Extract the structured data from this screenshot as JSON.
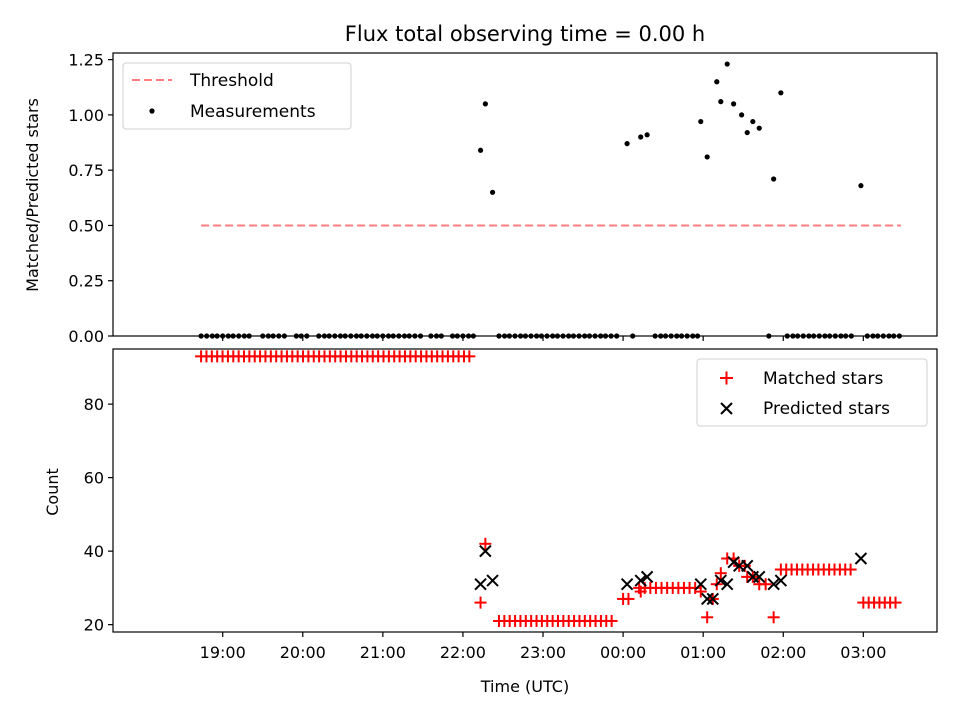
{
  "chart_data": [
    {
      "type": "scatter",
      "title": "Flux total observing time = 0.00 h",
      "xlabel": "",
      "ylabel": "Matched/Predicted stars",
      "ylim": [
        0,
        1.28
      ],
      "yticks": [
        0.0,
        0.25,
        0.5,
        0.75,
        1.0,
        1.25
      ],
      "ytick_labels": [
        "0.00",
        "0.25",
        "0.50",
        "0.75",
        "1.00",
        "1.25"
      ],
      "x_unit": "hours since 18:00 UTC",
      "legend_position": "top-left",
      "legend": [
        {
          "label": "Threshold",
          "style": "dashed-line",
          "color": "#ff7f7f"
        },
        {
          "label": "Measurements",
          "style": "dot",
          "color": "#000000"
        }
      ],
      "threshold": {
        "value": 0.5,
        "x_start": 0.73,
        "x_end": 9.47
      },
      "series": [
        {
          "name": "Measurements",
          "color": "#000000",
          "points": [
            [
              0.73,
              0
            ],
            [
              0.8,
              0
            ],
            [
              0.87,
              0
            ],
            [
              0.93,
              0
            ],
            [
              1.0,
              0
            ],
            [
              1.07,
              0
            ],
            [
              1.13,
              0
            ],
            [
              1.2,
              0
            ],
            [
              1.27,
              0
            ],
            [
              1.33,
              0
            ],
            [
              1.5,
              0
            ],
            [
              1.57,
              0
            ],
            [
              1.63,
              0
            ],
            [
              1.7,
              0
            ],
            [
              1.77,
              0
            ],
            [
              1.92,
              0
            ],
            [
              1.98,
              0
            ],
            [
              2.05,
              0
            ],
            [
              2.2,
              0
            ],
            [
              2.27,
              0
            ],
            [
              2.33,
              0
            ],
            [
              2.4,
              0
            ],
            [
              2.47,
              0
            ],
            [
              2.53,
              0
            ],
            [
              2.6,
              0
            ],
            [
              2.67,
              0
            ],
            [
              2.73,
              0
            ],
            [
              2.8,
              0
            ],
            [
              2.87,
              0
            ],
            [
              2.93,
              0
            ],
            [
              3.0,
              0
            ],
            [
              3.07,
              0
            ],
            [
              3.13,
              0
            ],
            [
              3.2,
              0
            ],
            [
              3.27,
              0
            ],
            [
              3.33,
              0
            ],
            [
              3.4,
              0
            ],
            [
              3.47,
              0
            ],
            [
              3.6,
              0
            ],
            [
              3.67,
              0
            ],
            [
              3.73,
              0
            ],
            [
              3.87,
              0
            ],
            [
              3.93,
              0
            ],
            [
              4.0,
              0
            ],
            [
              4.07,
              0
            ],
            [
              4.13,
              0
            ],
            [
              4.22,
              0.84
            ],
            [
              4.28,
              1.05
            ],
            [
              4.37,
              0.65
            ],
            [
              4.45,
              0
            ],
            [
              4.52,
              0
            ],
            [
              4.58,
              0
            ],
            [
              4.65,
              0
            ],
            [
              4.72,
              0
            ],
            [
              4.78,
              0
            ],
            [
              4.85,
              0
            ],
            [
              4.92,
              0
            ],
            [
              4.98,
              0
            ],
            [
              5.05,
              0
            ],
            [
              5.12,
              0
            ],
            [
              5.18,
              0
            ],
            [
              5.25,
              0
            ],
            [
              5.32,
              0
            ],
            [
              5.38,
              0
            ],
            [
              5.45,
              0
            ],
            [
              5.52,
              0
            ],
            [
              5.58,
              0
            ],
            [
              5.65,
              0
            ],
            [
              5.72,
              0
            ],
            [
              5.78,
              0
            ],
            [
              5.85,
              0
            ],
            [
              5.92,
              0
            ],
            [
              6.05,
              0.87
            ],
            [
              6.12,
              0
            ],
            [
              6.22,
              0.9
            ],
            [
              6.3,
              0.91
            ],
            [
              6.4,
              0
            ],
            [
              6.47,
              0
            ],
            [
              6.53,
              0
            ],
            [
              6.6,
              0
            ],
            [
              6.67,
              0
            ],
            [
              6.73,
              0
            ],
            [
              6.8,
              0
            ],
            [
              6.87,
              0
            ],
            [
              6.93,
              0
            ],
            [
              6.97,
              0.97
            ],
            [
              7.05,
              0.81
            ],
            [
              7.17,
              1.15
            ],
            [
              7.22,
              1.06
            ],
            [
              7.3,
              1.23
            ],
            [
              7.38,
              1.05
            ],
            [
              7.48,
              1.0
            ],
            [
              7.55,
              0.92
            ],
            [
              7.62,
              0.97
            ],
            [
              7.7,
              0.94
            ],
            [
              7.82,
              0
            ],
            [
              7.88,
              0.71
            ],
            [
              7.97,
              1.1
            ],
            [
              8.05,
              0
            ],
            [
              8.12,
              0
            ],
            [
              8.18,
              0
            ],
            [
              8.25,
              0
            ],
            [
              8.32,
              0
            ],
            [
              8.38,
              0
            ],
            [
              8.45,
              0
            ],
            [
              8.52,
              0
            ],
            [
              8.58,
              0
            ],
            [
              8.65,
              0
            ],
            [
              8.72,
              0
            ],
            [
              8.78,
              0
            ],
            [
              8.85,
              0
            ],
            [
              8.97,
              0.68
            ],
            [
              9.05,
              0
            ],
            [
              9.12,
              0
            ],
            [
              9.18,
              0
            ],
            [
              9.25,
              0
            ],
            [
              9.32,
              0
            ],
            [
              9.38,
              0
            ],
            [
              9.45,
              0
            ]
          ]
        }
      ]
    },
    {
      "type": "scatter",
      "title": "",
      "xlabel": "Time (UTC)",
      "ylabel": "Count",
      "ylim": [
        18,
        95
      ],
      "yticks": [
        20,
        40,
        60,
        80
      ],
      "ytick_labels": [
        "20",
        "40",
        "60",
        "80"
      ],
      "xlim": [
        -0.37,
        9.92
      ],
      "x_unit": "hours since 18:00 UTC",
      "xticks": [
        1,
        2,
        3,
        4,
        5,
        6,
        7,
        8,
        9
      ],
      "xtick_labels": [
        "19:00",
        "20:00",
        "21:00",
        "22:00",
        "23:00",
        "00:00",
        "01:00",
        "02:00",
        "03:00"
      ],
      "legend_position": "top-right",
      "legend": [
        {
          "label": "Matched stars",
          "style": "plus",
          "color": "#ff0000"
        },
        {
          "label": "Predicted stars",
          "style": "x",
          "color": "#000000"
        }
      ],
      "series": [
        {
          "name": "Matched stars",
          "color": "#ff0000",
          "marker": "plus",
          "runs": [
            {
              "x_start": 0.73,
              "x_end": 4.13,
              "step": 0.067,
              "y": 93
            },
            {
              "x_start": 4.45,
              "x_end": 5.92,
              "step": 0.067,
              "y": 21
            },
            {
              "x_start": 6.0,
              "x_end": 6.1,
              "step": 0.067,
              "y": 27
            },
            {
              "x_start": 6.2,
              "x_end": 6.9,
              "step": 0.07,
              "y": 30
            },
            {
              "x_start": 7.97,
              "x_end": 8.9,
              "step": 0.067,
              "y": 35
            },
            {
              "x_start": 9.0,
              "x_end": 9.45,
              "step": 0.067,
              "y": 26
            }
          ],
          "points": [
            [
              4.22,
              26
            ],
            [
              4.28,
              42
            ],
            [
              6.22,
              29
            ],
            [
              6.97,
              29
            ],
            [
              7.05,
              22
            ],
            [
              7.12,
              27
            ],
            [
              7.17,
              31
            ],
            [
              7.22,
              34
            ],
            [
              7.3,
              38
            ],
            [
              7.38,
              38
            ],
            [
              7.45,
              36
            ],
            [
              7.52,
              36
            ],
            [
              7.55,
              33
            ],
            [
              7.62,
              33
            ],
            [
              7.7,
              31
            ],
            [
              7.78,
              31
            ],
            [
              7.88,
              22
            ]
          ]
        },
        {
          "name": "Predicted stars",
          "color": "#000000",
          "marker": "x",
          "points": [
            [
              4.22,
              31
            ],
            [
              4.28,
              40
            ],
            [
              4.37,
              32
            ],
            [
              6.05,
              31
            ],
            [
              6.22,
              32
            ],
            [
              6.3,
              33
            ],
            [
              6.97,
              31
            ],
            [
              7.05,
              27
            ],
            [
              7.12,
              27
            ],
            [
              7.22,
              32
            ],
            [
              7.3,
              31
            ],
            [
              7.38,
              37
            ],
            [
              7.45,
              36
            ],
            [
              7.55,
              36
            ],
            [
              7.62,
              33
            ],
            [
              7.7,
              33
            ],
            [
              7.88,
              31
            ],
            [
              7.97,
              32
            ],
            [
              8.97,
              38
            ]
          ]
        }
      ]
    }
  ]
}
